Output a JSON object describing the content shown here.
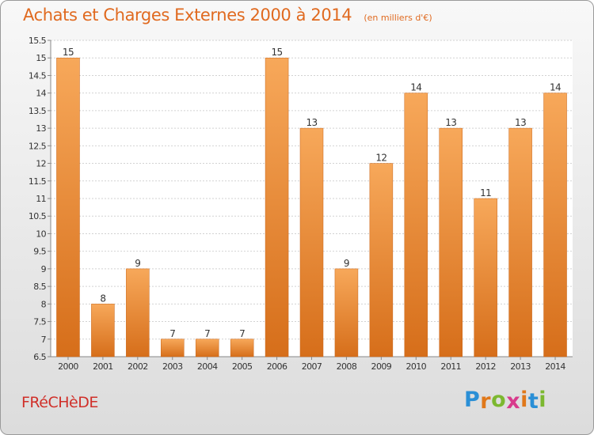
{
  "chart_data": {
    "type": "bar",
    "title": "Achats et Charges Externes 2000 à 2014",
    "subtitle": "(en milliers d'€)",
    "categories": [
      "2000",
      "2001",
      "2002",
      "2003",
      "2004",
      "2005",
      "2006",
      "2007",
      "2008",
      "2009",
      "2010",
      "2011",
      "2012",
      "2013",
      "2014"
    ],
    "values": [
      15,
      8,
      9,
      7,
      7,
      7,
      15,
      13,
      9,
      12,
      14,
      13,
      11,
      13,
      14
    ],
    "value_labels": [
      "15",
      "8",
      "9",
      "7",
      "7",
      "7",
      "15",
      "13",
      "9",
      "12",
      "14",
      "13",
      "11",
      "13",
      "14"
    ],
    "ylim": [
      6.5,
      15.5
    ],
    "yticks": [
      6.5,
      7,
      7.5,
      8,
      8.5,
      9,
      9.5,
      10,
      10.5,
      11,
      11.5,
      12,
      12.5,
      13,
      13.5,
      14,
      14.5,
      15,
      15.5
    ],
    "ytick_labels": [
      "6.5",
      "7",
      "7.5",
      "8",
      "8.5",
      "9",
      "9.5",
      "10",
      "10.5",
      "11",
      "11.5",
      "12",
      "12.5",
      "13",
      "13.5",
      "14",
      "14.5",
      "15",
      "15.5"
    ],
    "grid": true,
    "bar_color_top": "#f7a85a",
    "bar_color_bottom": "#d66e1a"
  },
  "footer": {
    "commune": "FRéCHèDE"
  },
  "logo": {
    "letters": [
      "P",
      "r",
      "o",
      "x",
      "i",
      "t",
      "i"
    ],
    "colors": [
      "#2a8fd6",
      "#e0781a",
      "#7cb830",
      "#d83a8c",
      "#e0781a",
      "#2a8fd6",
      "#7cb830"
    ]
  }
}
